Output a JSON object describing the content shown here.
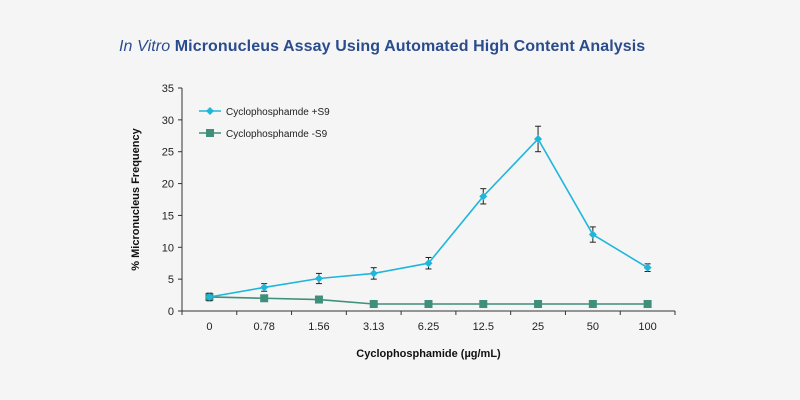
{
  "title": {
    "italic_part": "In Vitro",
    "rest": " Micronucleus Assay Using Automated High Content Analysis"
  },
  "colors": {
    "series1": "#1fb6dc",
    "series2": "#3f8f7a",
    "title": "#2b4c8c",
    "background": "#f5f5f5"
  },
  "chart_data": {
    "type": "line",
    "categories": [
      "0",
      "0.78",
      "1.56",
      "3.13",
      "6.25",
      "12.5",
      "25",
      "50",
      "100"
    ],
    "xlabel": "Cyclophosphamide (µg/mL)",
    "ylabel": "% Micronucleus Frequency",
    "ylim": [
      0,
      35
    ],
    "yticks": [
      "0",
      "5",
      "10",
      "15",
      "20",
      "25",
      "30",
      "35"
    ],
    "legend_position": "top-left",
    "grid": false,
    "series": [
      {
        "name": "Cyclophosphamde +S9",
        "marker": "diamond",
        "values": [
          2.2,
          3.7,
          5.1,
          5.9,
          7.5,
          18.0,
          27.0,
          12.0,
          6.8
        ],
        "errors": [
          0.6,
          0.6,
          0.8,
          0.9,
          0.9,
          1.2,
          2.0,
          1.2,
          0.6
        ]
      },
      {
        "name": "Cyclophosphamde -S9",
        "marker": "square",
        "values": [
          2.2,
          2.0,
          1.8,
          1.1,
          1.1,
          1.1,
          1.1,
          1.1,
          1.1
        ],
        "errors": [
          0,
          0,
          0,
          0,
          0,
          0,
          0,
          0,
          0
        ]
      }
    ]
  }
}
